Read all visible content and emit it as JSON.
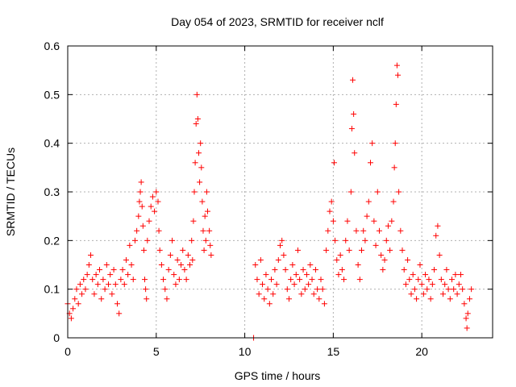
{
  "chart_data": {
    "type": "scatter",
    "title": "Day 054 of 2023, SRMTID for receiver nclf",
    "xlabel": "GPS time / hours",
    "ylabel": "SRMTID / TECUs",
    "xlim": [
      0,
      24
    ],
    "ylim": [
      0,
      0.6
    ],
    "xticks": [
      0,
      5,
      10,
      15,
      20
    ],
    "yticks": [
      0,
      0.1,
      0.2,
      0.3,
      0.4,
      0.5,
      0.6
    ],
    "grid": true,
    "marker": "plus",
    "series": [
      {
        "name": "SRMTID",
        "color": "#ff0000",
        "points": [
          [
            0.0,
            0.07
          ],
          [
            0.1,
            0.05
          ],
          [
            0.2,
            0.04
          ],
          [
            0.3,
            0.06
          ],
          [
            0.4,
            0.08
          ],
          [
            0.5,
            0.1
          ],
          [
            0.6,
            0.07
          ],
          [
            0.7,
            0.11
          ],
          [
            0.8,
            0.09
          ],
          [
            0.9,
            0.12
          ],
          [
            1.0,
            0.1
          ],
          [
            1.1,
            0.13
          ],
          [
            1.2,
            0.15
          ],
          [
            1.3,
            0.17
          ],
          [
            1.4,
            0.12
          ],
          [
            1.5,
            0.09
          ],
          [
            1.6,
            0.13
          ],
          [
            1.7,
            0.11
          ],
          [
            1.8,
            0.14
          ],
          [
            1.9,
            0.08
          ],
          [
            2.0,
            0.12
          ],
          [
            2.1,
            0.1
          ],
          [
            2.2,
            0.15
          ],
          [
            2.3,
            0.11
          ],
          [
            2.4,
            0.13
          ],
          [
            2.5,
            0.09
          ],
          [
            2.6,
            0.14
          ],
          [
            2.7,
            0.11
          ],
          [
            2.8,
            0.07
          ],
          [
            2.9,
            0.05
          ],
          [
            3.0,
            0.12
          ],
          [
            3.1,
            0.14
          ],
          [
            3.2,
            0.11
          ],
          [
            3.3,
            0.16
          ],
          [
            3.4,
            0.13
          ],
          [
            3.5,
            0.19
          ],
          [
            3.6,
            0.15
          ],
          [
            3.7,
            0.12
          ],
          [
            3.8,
            0.2
          ],
          [
            3.9,
            0.22
          ],
          [
            4.0,
            0.25
          ],
          [
            4.05,
            0.28
          ],
          [
            4.1,
            0.3
          ],
          [
            4.15,
            0.32
          ],
          [
            4.2,
            0.27
          ],
          [
            4.25,
            0.23
          ],
          [
            4.3,
            0.18
          ],
          [
            4.35,
            0.12
          ],
          [
            4.4,
            0.1
          ],
          [
            4.45,
            0.08
          ],
          [
            4.5,
            0.2
          ],
          [
            4.6,
            0.24
          ],
          [
            4.7,
            0.27
          ],
          [
            4.8,
            0.29
          ],
          [
            4.9,
            0.26
          ],
          [
            5.0,
            0.3
          ],
          [
            5.1,
            0.28
          ],
          [
            5.15,
            0.22
          ],
          [
            5.2,
            0.18
          ],
          [
            5.3,
            0.15
          ],
          [
            5.4,
            0.12
          ],
          [
            5.5,
            0.1
          ],
          [
            5.6,
            0.08
          ],
          [
            5.7,
            0.14
          ],
          [
            5.8,
            0.17
          ],
          [
            5.9,
            0.2
          ],
          [
            6.0,
            0.13
          ],
          [
            6.1,
            0.11
          ],
          [
            6.2,
            0.16
          ],
          [
            6.3,
            0.12
          ],
          [
            6.4,
            0.15
          ],
          [
            6.5,
            0.18
          ],
          [
            6.6,
            0.14
          ],
          [
            6.7,
            0.12
          ],
          [
            6.8,
            0.17
          ],
          [
            6.9,
            0.15
          ],
          [
            7.0,
            0.2
          ],
          [
            7.05,
            0.16
          ],
          [
            7.1,
            0.24
          ],
          [
            7.15,
            0.3
          ],
          [
            7.2,
            0.36
          ],
          [
            7.25,
            0.44
          ],
          [
            7.3,
            0.5
          ],
          [
            7.35,
            0.45
          ],
          [
            7.4,
            0.38
          ],
          [
            7.45,
            0.32
          ],
          [
            7.5,
            0.4
          ],
          [
            7.55,
            0.35
          ],
          [
            7.6,
            0.28
          ],
          [
            7.65,
            0.22
          ],
          [
            7.7,
            0.18
          ],
          [
            7.75,
            0.25
          ],
          [
            7.8,
            0.2
          ],
          [
            7.85,
            0.3
          ],
          [
            7.9,
            0.26
          ],
          [
            8.0,
            0.22
          ],
          [
            8.05,
            0.19
          ],
          [
            8.1,
            0.17
          ],
          [
            10.5,
            0.0
          ],
          [
            10.6,
            0.15
          ],
          [
            10.7,
            0.12
          ],
          [
            10.8,
            0.09
          ],
          [
            10.9,
            0.16
          ],
          [
            11.0,
            0.11
          ],
          [
            11.1,
            0.08
          ],
          [
            11.2,
            0.13
          ],
          [
            11.3,
            0.1
          ],
          [
            11.4,
            0.07
          ],
          [
            11.5,
            0.12
          ],
          [
            11.6,
            0.09
          ],
          [
            11.7,
            0.14
          ],
          [
            11.8,
            0.11
          ],
          [
            11.9,
            0.16
          ],
          [
            12.0,
            0.19
          ],
          [
            12.1,
            0.2
          ],
          [
            12.2,
            0.17
          ],
          [
            12.3,
            0.14
          ],
          [
            12.4,
            0.1
          ],
          [
            12.5,
            0.08
          ],
          [
            12.6,
            0.12
          ],
          [
            12.7,
            0.15
          ],
          [
            12.8,
            0.11
          ],
          [
            12.9,
            0.13
          ],
          [
            13.0,
            0.18
          ],
          [
            13.1,
            0.12
          ],
          [
            13.2,
            0.09
          ],
          [
            13.3,
            0.14
          ],
          [
            13.4,
            0.1
          ],
          [
            13.5,
            0.13
          ],
          [
            13.6,
            0.11
          ],
          [
            13.7,
            0.15
          ],
          [
            13.8,
            0.12
          ],
          [
            13.9,
            0.09
          ],
          [
            14.0,
            0.14
          ],
          [
            14.1,
            0.1
          ],
          [
            14.2,
            0.08
          ],
          [
            14.3,
            0.12
          ],
          [
            14.4,
            0.1
          ],
          [
            14.5,
            0.07
          ],
          [
            14.6,
            0.18
          ],
          [
            14.7,
            0.22
          ],
          [
            14.8,
            0.26
          ],
          [
            14.9,
            0.28
          ],
          [
            15.0,
            0.24
          ],
          [
            15.05,
            0.36
          ],
          [
            15.1,
            0.2
          ],
          [
            15.2,
            0.16
          ],
          [
            15.3,
            0.13
          ],
          [
            15.4,
            0.17
          ],
          [
            15.5,
            0.14
          ],
          [
            15.6,
            0.12
          ],
          [
            15.7,
            0.2
          ],
          [
            15.8,
            0.24
          ],
          [
            15.9,
            0.18
          ],
          [
            16.0,
            0.3
          ],
          [
            16.05,
            0.43
          ],
          [
            16.1,
            0.53
          ],
          [
            16.15,
            0.46
          ],
          [
            16.2,
            0.38
          ],
          [
            16.3,
            0.22
          ],
          [
            16.4,
            0.15
          ],
          [
            16.5,
            0.12
          ],
          [
            16.6,
            0.18
          ],
          [
            16.7,
            0.22
          ],
          [
            16.8,
            0.2
          ],
          [
            16.9,
            0.25
          ],
          [
            17.0,
            0.28
          ],
          [
            17.1,
            0.36
          ],
          [
            17.2,
            0.4
          ],
          [
            17.3,
            0.24
          ],
          [
            17.4,
            0.19
          ],
          [
            17.5,
            0.3
          ],
          [
            17.6,
            0.22
          ],
          [
            17.7,
            0.17
          ],
          [
            17.8,
            0.14
          ],
          [
            17.9,
            0.16
          ],
          [
            18.0,
            0.2
          ],
          [
            18.1,
            0.23
          ],
          [
            18.2,
            0.18
          ],
          [
            18.3,
            0.24
          ],
          [
            18.4,
            0.28
          ],
          [
            18.45,
            0.35
          ],
          [
            18.5,
            0.4
          ],
          [
            18.55,
            0.48
          ],
          [
            18.6,
            0.56
          ],
          [
            18.65,
            0.54
          ],
          [
            18.7,
            0.3
          ],
          [
            18.8,
            0.22
          ],
          [
            18.9,
            0.18
          ],
          [
            19.0,
            0.14
          ],
          [
            19.1,
            0.11
          ],
          [
            19.2,
            0.16
          ],
          [
            19.3,
            0.12
          ],
          [
            19.4,
            0.09
          ],
          [
            19.5,
            0.13
          ],
          [
            19.6,
            0.1
          ],
          [
            19.7,
            0.08
          ],
          [
            19.8,
            0.12
          ],
          [
            19.9,
            0.15
          ],
          [
            20.0,
            0.11
          ],
          [
            20.1,
            0.09
          ],
          [
            20.2,
            0.13
          ],
          [
            20.3,
            0.1
          ],
          [
            20.4,
            0.12
          ],
          [
            20.5,
            0.08
          ],
          [
            20.6,
            0.11
          ],
          [
            20.7,
            0.14
          ],
          [
            20.8,
            0.21
          ],
          [
            20.9,
            0.23
          ],
          [
            21.0,
            0.17
          ],
          [
            21.1,
            0.12
          ],
          [
            21.2,
            0.09
          ],
          [
            21.3,
            0.11
          ],
          [
            21.4,
            0.14
          ],
          [
            21.5,
            0.1
          ],
          [
            21.6,
            0.08
          ],
          [
            21.7,
            0.12
          ],
          [
            21.8,
            0.1
          ],
          [
            21.9,
            0.13
          ],
          [
            22.0,
            0.09
          ],
          [
            22.1,
            0.11
          ],
          [
            22.2,
            0.13
          ],
          [
            22.3,
            0.1
          ],
          [
            22.4,
            0.07
          ],
          [
            22.5,
            0.04
          ],
          [
            22.55,
            0.02
          ],
          [
            22.6,
            0.05
          ],
          [
            22.7,
            0.08
          ],
          [
            22.8,
            0.1
          ]
        ]
      }
    ]
  }
}
